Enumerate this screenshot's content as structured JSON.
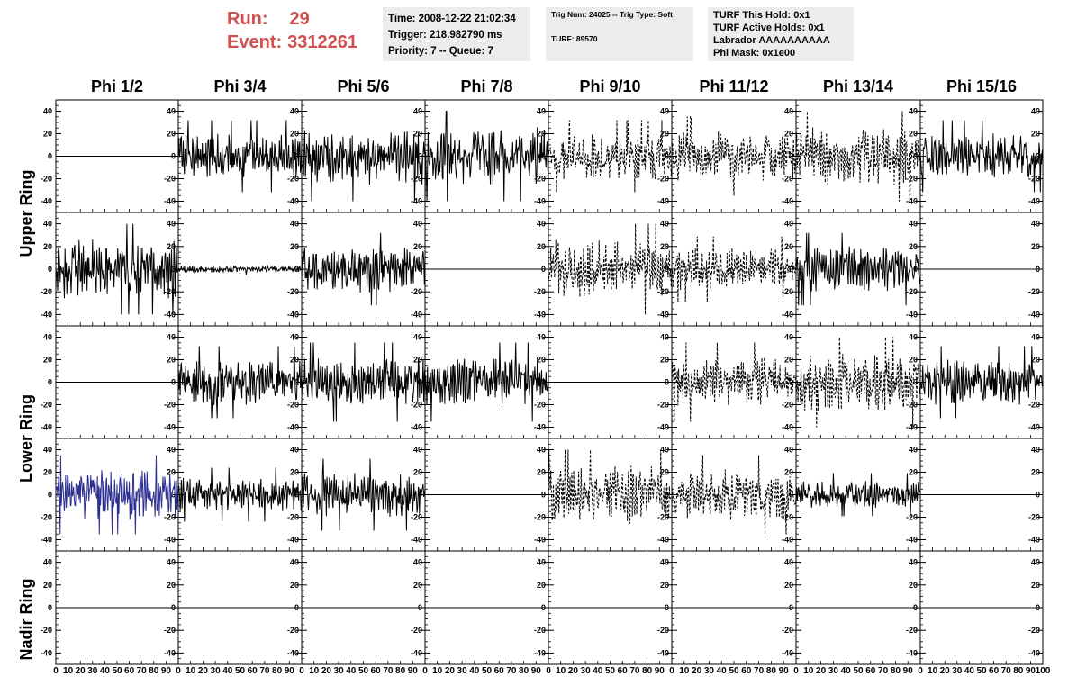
{
  "run": {
    "run_label": "Run:",
    "run_value": "29",
    "event_label": "Event:",
    "event_value": "3312261"
  },
  "time_box": {
    "time": "Time: 2008-12-22 21:02:34",
    "trigger": "Trigger: 218.982790 ms",
    "priority": "Priority: 7 -- Queue: 7"
  },
  "trig_box": {
    "trig": "Trig Num: 24025 -- Trig Type: Soft",
    "turf": "TURF: 89570"
  },
  "turf_box": {
    "this_hold": "TURF This Hold: 0x1",
    "active_holds": "TURF Active Holds: 0x1",
    "labrador": "Labrador AAAAAAAAAA",
    "phi_mask": "Phi Mask: 0x1e00"
  },
  "columns": [
    "Phi 1/2",
    "Phi 3/4",
    "Phi 5/6",
    "Phi 7/8",
    "Phi 9/10",
    "Phi 11/12",
    "Phi 13/14",
    "Phi 15/16"
  ],
  "rows": [
    "Upper Ring",
    "Upper Ring",
    "Lower Ring",
    "Lower Ring",
    "Nadir Ring"
  ],
  "y_ticks": [
    "40",
    "20",
    "0",
    "-20",
    "-40"
  ],
  "x_ticks": [
    "0",
    "10",
    "20",
    "30",
    "40",
    "50",
    "60",
    "70",
    "80",
    "90",
    "100"
  ],
  "colors": {
    "run_text": "#d05050",
    "info_bg": "#ececec",
    "trace": "#000000",
    "highlight_trace": "#2b2f8f"
  },
  "chart_data": {
    "type": "line",
    "description_grid": "5 rows x 8 columns of waveform panels",
    "xlim": [
      0,
      100
    ],
    "ylim": [
      -50,
      50
    ],
    "panels": [
      [
        "flat",
        "solid-20",
        "solid-25",
        "solid-25",
        "dashed-20",
        "dashed-22",
        "dashed-25",
        "solid-20"
      ],
      [
        "solid-25",
        "solid-3",
        "solid-20",
        "flat",
        "dashed-25",
        "dashed-18",
        "solid-20",
        "flat"
      ],
      [
        "flat",
        "solid-20",
        "solid-22",
        "solid-22",
        "flat",
        "dashed-22",
        "dashed-25",
        "solid-20"
      ],
      [
        "blue-22",
        "solid-15",
        "solid-20",
        "flat",
        "dashed-25",
        "dashed-22",
        "solid-12",
        "flat"
      ],
      [
        "flat",
        "flat",
        "flat",
        "flat",
        "flat",
        "flat",
        "flat",
        "flat"
      ]
    ]
  }
}
